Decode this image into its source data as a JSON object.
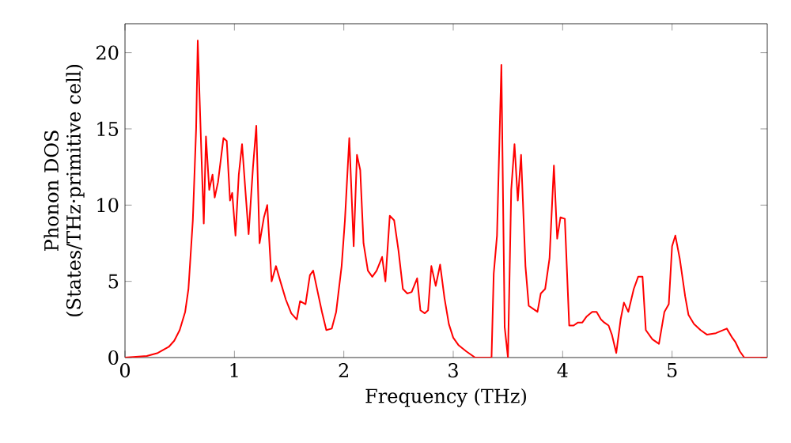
{
  "chart_data": {
    "type": "line",
    "xlabel": "Frequency (THz)",
    "ylabel": "Phonon DOS (States/THz·primitive cell)",
    "xlim": [
      0,
      5.87
    ],
    "ylim": [
      0,
      21.9
    ],
    "xticks": [
      0,
      1,
      2,
      3,
      4,
      5
    ],
    "yticks": [
      0,
      5,
      10,
      15,
      20
    ],
    "grid": false,
    "marker": "none",
    "line_style": "solid",
    "series": [
      {
        "color": "#ff0000",
        "x": [
          0,
          0.2,
          0.3,
          0.4,
          0.45,
          0.5,
          0.55,
          0.58,
          0.62,
          0.65,
          0.665,
          0.7,
          0.72,
          0.74,
          0.77,
          0.8,
          0.82,
          0.85,
          0.9,
          0.93,
          0.96,
          0.98,
          1.01,
          1.04,
          1.07,
          1.1,
          1.13,
          1.17,
          1.2,
          1.23,
          1.27,
          1.3,
          1.34,
          1.38,
          1.42,
          1.47,
          1.52,
          1.57,
          1.6,
          1.65,
          1.69,
          1.72,
          1.77,
          1.8,
          1.84,
          1.89,
          1.93,
          1.98,
          2.01,
          2.05,
          2.09,
          2.12,
          2.15,
          2.18,
          2.22,
          2.26,
          2.3,
          2.35,
          2.38,
          2.42,
          2.46,
          2.5,
          2.54,
          2.58,
          2.62,
          2.67,
          2.7,
          2.74,
          2.77,
          2.8,
          2.84,
          2.88,
          2.92,
          2.96,
          3.0,
          3.05,
          3.12,
          3.2,
          3.35,
          3.37,
          3.4,
          3.44,
          3.47,
          3.5,
          3.53,
          3.56,
          3.59,
          3.62,
          3.66,
          3.69,
          3.73,
          3.77,
          3.8,
          3.84,
          3.88,
          3.92,
          3.95,
          3.98,
          4.02,
          4.06,
          4.1,
          4.14,
          4.18,
          4.22,
          4.27,
          4.31,
          4.35,
          4.38,
          4.42,
          4.45,
          4.49,
          4.53,
          4.56,
          4.6,
          4.65,
          4.69,
          4.73,
          4.76,
          4.82,
          4.88,
          4.93,
          4.97,
          5.0,
          5.03,
          5.07,
          5.12,
          5.15,
          5.2,
          5.26,
          5.32,
          5.4,
          5.5,
          5.55,
          5.58,
          5.62,
          5.66,
          5.87
        ],
        "values": [
          0,
          0.1,
          0.3,
          0.7,
          1.1,
          1.8,
          3,
          4.5,
          9,
          15,
          20.8,
          13,
          8.8,
          14.5,
          11,
          12,
          10.5,
          11.5,
          14.4,
          14.2,
          10.3,
          10.8,
          8,
          12,
          14,
          11,
          8.1,
          12.5,
          15.2,
          7.5,
          9.2,
          10,
          5,
          6,
          5,
          3.8,
          2.9,
          2.5,
          3.7,
          3.5,
          5.4,
          5.7,
          4,
          3,
          1.8,
          1.9,
          3,
          6,
          9,
          14.4,
          7.3,
          13.3,
          12.3,
          7.5,
          5.7,
          5.3,
          5.7,
          6.6,
          5,
          9.3,
          9,
          7,
          4.5,
          4.2,
          4.3,
          5.2,
          3.1,
          2.9,
          3.1,
          6,
          4.7,
          6.1,
          3.9,
          2.2,
          1.3,
          0.8,
          0.4,
          0,
          0,
          5.5,
          8,
          19.2,
          2,
          0,
          11,
          14,
          10.3,
          13.3,
          6,
          3.4,
          3.2,
          3,
          4.2,
          4.5,
          6.5,
          12.6,
          7.8,
          9.2,
          9.1,
          2.1,
          2.1,
          2.3,
          2.3,
          2.7,
          3.0,
          3.0,
          2.5,
          2.3,
          2.1,
          1.5,
          0.3,
          2.5,
          3.6,
          3,
          4.5,
          5.3,
          5.3,
          1.8,
          1.2,
          0.9,
          3,
          3.5,
          7.3,
          8,
          6.5,
          4,
          2.8,
          2.2,
          1.8,
          1.5,
          1.6,
          1.9,
          1.3,
          1.0,
          0.4,
          0,
          0
        ]
      }
    ]
  }
}
